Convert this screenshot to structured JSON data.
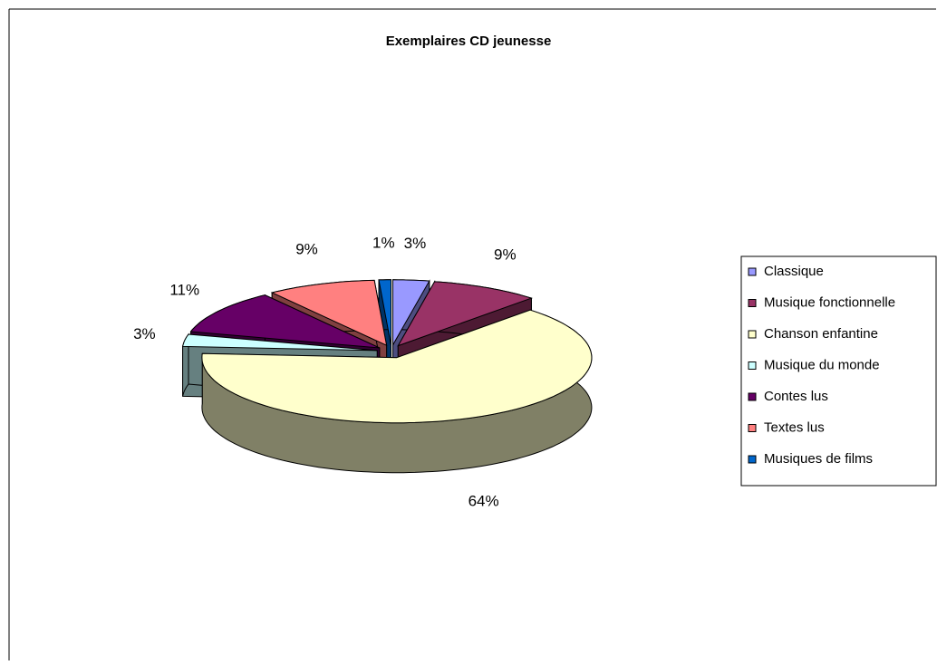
{
  "chart_data": {
    "type": "pie",
    "title": "Exemplaires CD jeunesse",
    "categories": [
      "Classique",
      "Musique fonctionnelle",
      "Chanson enfantine",
      "Musique du monde",
      "Contes lus",
      "Textes lus",
      "Musiques de films"
    ],
    "values": [
      3,
      9,
      64,
      3,
      11,
      9,
      1
    ],
    "value_labels": [
      "3%",
      "9%",
      "64%",
      "3%",
      "11%",
      "9%",
      "1%"
    ],
    "colors": [
      "#9999ff",
      "#993366",
      "#ffffcc",
      "#ccffff",
      "#660066",
      "#ff8080",
      "#0066cc"
    ],
    "legend": "right",
    "exploded": true
  }
}
